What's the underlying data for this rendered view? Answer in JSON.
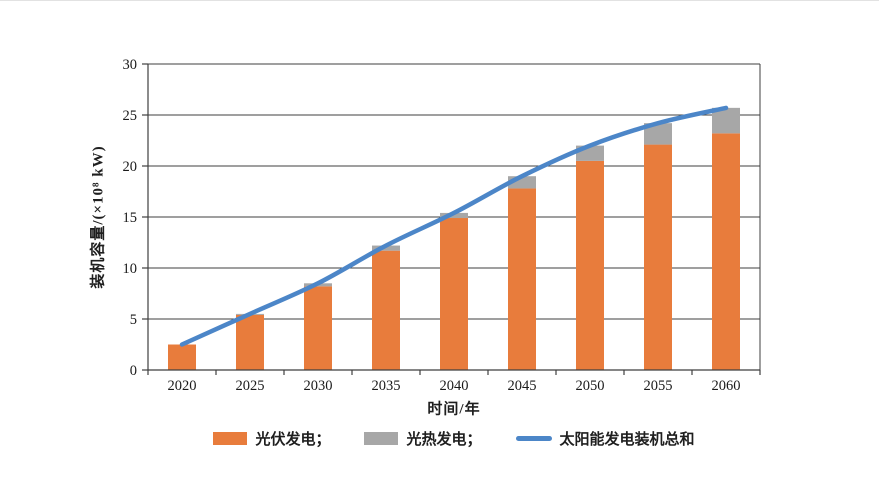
{
  "chart_data": {
    "type": "bar",
    "subtype": "stacked-bars-with-line-overlay",
    "categories": [
      "2020",
      "2025",
      "2030",
      "2035",
      "2040",
      "2045",
      "2050",
      "2055",
      "2060"
    ],
    "series": [
      {
        "name": "光伏发电",
        "type": "bar",
        "color": "#E87C3C",
        "values": [
          2.5,
          5.4,
          8.2,
          11.7,
          14.9,
          17.8,
          20.5,
          22.1,
          23.2
        ]
      },
      {
        "name": "光热发电",
        "type": "bar",
        "color": "#A7A7A7",
        "values": [
          0,
          0.1,
          0.3,
          0.5,
          0.5,
          1.2,
          1.5,
          2.1,
          2.5
        ]
      },
      {
        "name": "太阳能发电装机总和",
        "type": "line",
        "color": "#4C86C8",
        "values": [
          2.5,
          5.5,
          8.5,
          12.2,
          15.4,
          19.0,
          22.0,
          24.2,
          25.7
        ]
      }
    ],
    "title": "",
    "xlabel": "时间/年",
    "ylabel": "装机容量/(×10⁸ kW)",
    "ylim": [
      0,
      30
    ],
    "yticks": [
      0,
      5,
      10,
      15,
      20,
      25,
      30
    ],
    "grid": true,
    "legend_position": "bottom",
    "legend": [
      {
        "label": "光伏发电；",
        "swatch": "bar",
        "color": "#E87C3C"
      },
      {
        "label": "光热发电；",
        "swatch": "bar",
        "color": "#A7A7A7"
      },
      {
        "label": "太阳能发电装机总和",
        "swatch": "line",
        "color": "#4C86C8"
      }
    ]
  },
  "style": {
    "grid_color": "#3f3f3f",
    "axis_color": "#3f3f3f",
    "text_color": "#1a1a1a",
    "background": "#ffffff"
  }
}
